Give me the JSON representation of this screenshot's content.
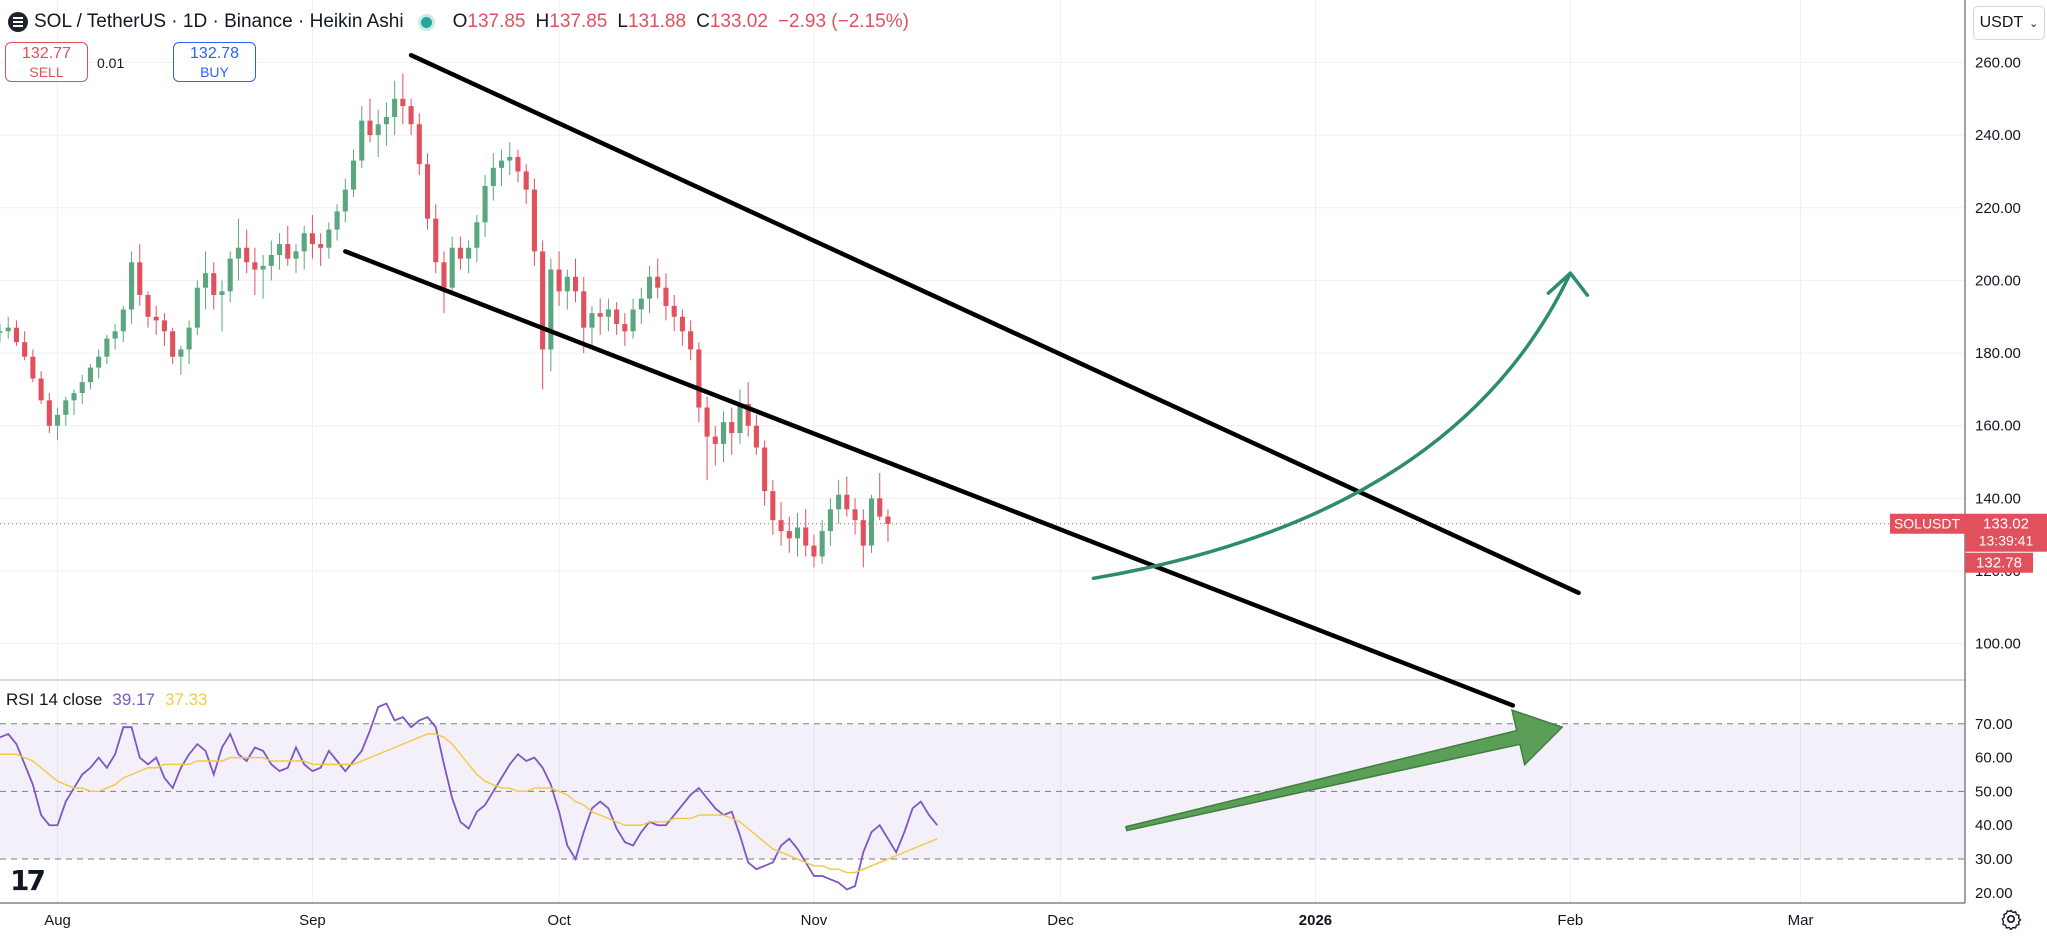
{
  "header": {
    "symbol": "SOL / TetherUS · 1D · Binance · Heikin Ashi",
    "o_label": "O",
    "o_value": "137.85",
    "h_label": "H",
    "h_value": "137.85",
    "l_label": "L",
    "l_value": "131.88",
    "c_label": "C",
    "c_value": "133.02",
    "change": "−2.93 (−2.15%)"
  },
  "trade": {
    "sell_price": "132.77",
    "sell_label": "SELL",
    "spread": "0.01",
    "buy_price": "132.78",
    "buy_label": "BUY"
  },
  "currency": "USDT",
  "price_labels": {
    "symbol_tag": "SOLUSDT",
    "last_price": "133.02",
    "countdown": "13:39:41",
    "ask": "132.78"
  },
  "rsi": {
    "label": "RSI 14 close",
    "rsi_value": "39.17",
    "ma_value": "37.33"
  },
  "colors": {
    "up": "#5aa77f",
    "down": "#e0515d",
    "rsi_line": "#7e57c2",
    "rsi_ma": "#f5c842",
    "arrow": "#2e8b6e",
    "rsi_arrow": "#5a9e57"
  },
  "icons": {
    "logo": "tradingview-logo",
    "settings": "gear-icon",
    "symbol": "symbol-icon"
  },
  "chart_data": [
    {
      "type": "candlestick",
      "title": "SOL / TetherUS · 1D · Binance · Heikin Ashi",
      "ylim": [
        90,
        275
      ],
      "y_ticks": [
        "260.00",
        "240.00",
        "220.00",
        "200.00",
        "180.00",
        "160.00",
        "140.00",
        "120.00",
        "100.00"
      ],
      "x_ticks": [
        "Aug",
        "Sep",
        "Oct",
        "Nov",
        "Dec",
        "2026",
        "Feb",
        "Mar"
      ],
      "x_tick_days": [
        0,
        31,
        61,
        92,
        122,
        153,
        184,
        212
      ],
      "x_range_days": [
        -7,
        232
      ],
      "candles_start_day": -7,
      "candles": [
        [
          186,
          188,
          183,
          186
        ],
        [
          186,
          190,
          184,
          187
        ],
        [
          187,
          189,
          182,
          183
        ],
        [
          183,
          186,
          178,
          179
        ],
        [
          179,
          181,
          172,
          173
        ],
        [
          173,
          175,
          166,
          167
        ],
        [
          167,
          169,
          158,
          160
        ],
        [
          160,
          165,
          156,
          163
        ],
        [
          163,
          168,
          160,
          167
        ],
        [
          167,
          170,
          163,
          169
        ],
        [
          169,
          174,
          166,
          172
        ],
        [
          172,
          177,
          170,
          176
        ],
        [
          176,
          181,
          173,
          179
        ],
        [
          179,
          185,
          177,
          184
        ],
        [
          184,
          188,
          181,
          186
        ],
        [
          186,
          193,
          183,
          192
        ],
        [
          192,
          208,
          188,
          205
        ],
        [
          205,
          210,
          193,
          196
        ],
        [
          196,
          197,
          187,
          190
        ],
        [
          190,
          193,
          185,
          189
        ],
        [
          189,
          191,
          182,
          186
        ],
        [
          186,
          187,
          177,
          179
        ],
        [
          179,
          182,
          174,
          181
        ],
        [
          181,
          189,
          177,
          187
        ],
        [
          187,
          200,
          185,
          198
        ],
        [
          198,
          208,
          192,
          202
        ],
        [
          202,
          205,
          192,
          196
        ],
        [
          196,
          200,
          186,
          197
        ],
        [
          197,
          208,
          194,
          206
        ],
        [
          206,
          217,
          200,
          209
        ],
        [
          209,
          214,
          202,
          205
        ],
        [
          205,
          209,
          196,
          203
        ],
        [
          203,
          207,
          195,
          204
        ],
        [
          204,
          211,
          200,
          207
        ],
        [
          207,
          213,
          203,
          210
        ],
        [
          210,
          215,
          204,
          206
        ],
        [
          206,
          210,
          202,
          208
        ],
        [
          208,
          215,
          203,
          213
        ],
        [
          213,
          218,
          206,
          210
        ],
        [
          210,
          213,
          204,
          209
        ],
        [
          209,
          216,
          206,
          214
        ],
        [
          214,
          221,
          211,
          219
        ],
        [
          219,
          228,
          216,
          225
        ],
        [
          225,
          236,
          223,
          233
        ],
        [
          233,
          248,
          231,
          244
        ],
        [
          244,
          250,
          238,
          240
        ],
        [
          240,
          247,
          234,
          243
        ],
        [
          243,
          249,
          237,
          245
        ],
        [
          245,
          255,
          240,
          250
        ],
        [
          250,
          257,
          243,
          248
        ],
        [
          248,
          250,
          240,
          243
        ],
        [
          243,
          246,
          229,
          232
        ],
        [
          232,
          235,
          214,
          217
        ],
        [
          217,
          221,
          202,
          205
        ],
        [
          205,
          208,
          191,
          198
        ],
        [
          198,
          212,
          196,
          209
        ],
        [
          209,
          212,
          203,
          206
        ],
        [
          206,
          211,
          202,
          209
        ],
        [
          209,
          218,
          205,
          216
        ],
        [
          216,
          229,
          212,
          226
        ],
        [
          226,
          235,
          222,
          231
        ],
        [
          231,
          236,
          226,
          233
        ],
        [
          233,
          238,
          229,
          234
        ],
        [
          234,
          236,
          227,
          230
        ],
        [
          230,
          232,
          221,
          225
        ],
        [
          225,
          228,
          204,
          208
        ],
        [
          208,
          211,
          170,
          181
        ],
        [
          181,
          206,
          175,
          203
        ],
        [
          203,
          208,
          193,
          197
        ],
        [
          197,
          203,
          192,
          201
        ],
        [
          201,
          206,
          194,
          197
        ],
        [
          197,
          201,
          180,
          187
        ],
        [
          187,
          193,
          182,
          191
        ],
        [
          191,
          195,
          185,
          190
        ],
        [
          190,
          195,
          186,
          192
        ],
        [
          192,
          194,
          185,
          188
        ],
        [
          188,
          191,
          182,
          186
        ],
        [
          186,
          195,
          184,
          192
        ],
        [
          192,
          198,
          188,
          195
        ],
        [
          195,
          204,
          191,
          201
        ],
        [
          201,
          206,
          195,
          198
        ],
        [
          198,
          202,
          189,
          193
        ],
        [
          193,
          196,
          186,
          190
        ],
        [
          190,
          192,
          182,
          186
        ],
        [
          186,
          189,
          178,
          181
        ],
        [
          181,
          183,
          161,
          165
        ],
        [
          165,
          168,
          145,
          157
        ],
        [
          157,
          160,
          149,
          155
        ],
        [
          155,
          164,
          150,
          161
        ],
        [
          161,
          165,
          152,
          158
        ],
        [
          158,
          170,
          155,
          166
        ],
        [
          166,
          172,
          157,
          160
        ],
        [
          160,
          163,
          152,
          154
        ],
        [
          154,
          156,
          138,
          142
        ],
        [
          142,
          145,
          130,
          134
        ],
        [
          134,
          139,
          127,
          131
        ],
        [
          131,
          135,
          125,
          129
        ],
        [
          129,
          136,
          124,
          132
        ],
        [
          132,
          137,
          124,
          127
        ],
        [
          127,
          130,
          121,
          124
        ],
        [
          124,
          134,
          122,
          131
        ],
        [
          131,
          140,
          127,
          137
        ],
        [
          137,
          145,
          133,
          141
        ],
        [
          141,
          146,
          135,
          137
        ],
        [
          137,
          140,
          130,
          134
        ],
        [
          134,
          137,
          121,
          127
        ],
        [
          127,
          141,
          125,
          140
        ],
        [
          140,
          147,
          134,
          135
        ],
        [
          135,
          137,
          128,
          133
        ]
      ]
    },
    {
      "type": "line",
      "title": "RSI 14 close",
      "ylim": [
        17,
        80
      ],
      "y_ticks": [
        "70.00",
        "60.00",
        "50.00",
        "40.00",
        "30.00",
        "20.00"
      ],
      "levels": [
        70,
        50,
        30
      ],
      "series": [
        {
          "name": "RSI",
          "start_day": -7,
          "values": [
            66,
            67,
            64,
            58,
            52,
            43,
            40,
            40,
            47,
            51,
            55,
            57,
            60,
            57,
            61,
            69,
            69,
            60,
            58,
            60,
            54,
            51,
            57,
            61,
            64,
            62,
            55,
            63,
            67,
            61,
            59,
            63,
            62,
            58,
            56,
            57,
            63,
            58,
            56,
            57,
            62,
            59,
            56,
            59,
            62,
            68,
            75,
            76,
            71,
            72,
            69,
            71,
            72,
            69,
            58,
            48,
            41,
            39,
            44,
            46,
            50,
            54,
            58,
            61,
            59,
            60,
            57,
            52,
            44,
            34,
            30,
            38,
            45,
            47,
            45,
            39,
            35,
            34,
            38,
            41,
            40,
            40,
            43,
            46,
            49,
            51,
            48,
            45,
            43,
            44,
            37,
            29,
            27,
            28,
            29,
            34,
            36,
            33,
            29,
            25,
            25,
            24,
            23,
            21,
            22,
            32,
            38,
            40,
            36,
            32,
            38,
            45,
            47,
            43,
            40
          ]
        },
        {
          "name": "RSI-based MA",
          "start_day": -7,
          "values": [
            61,
            61,
            61,
            60,
            59,
            57,
            55,
            53,
            52,
            51,
            51,
            50,
            50,
            51,
            52,
            54,
            55,
            56,
            57,
            57,
            58,
            58,
            58,
            58,
            59,
            59,
            59,
            59,
            60,
            60,
            60,
            60,
            60,
            59,
            59,
            59,
            59,
            59,
            58,
            58,
            58,
            58,
            58,
            58,
            59,
            60,
            61,
            62,
            63,
            64,
            65,
            66,
            67,
            67,
            66,
            64,
            61,
            58,
            55,
            53,
            52,
            51,
            51,
            50,
            50,
            51,
            51,
            51,
            50,
            49,
            47,
            46,
            44,
            43,
            42,
            41,
            40,
            40,
            40,
            41,
            41,
            41,
            42,
            42,
            42,
            43,
            43,
            43,
            43,
            42,
            41,
            39,
            37,
            35,
            33,
            32,
            31,
            30,
            29,
            28,
            28,
            27,
            27,
            26,
            26,
            27,
            28,
            29,
            30,
            31,
            32,
            33,
            34,
            35,
            36
          ]
        }
      ]
    }
  ]
}
